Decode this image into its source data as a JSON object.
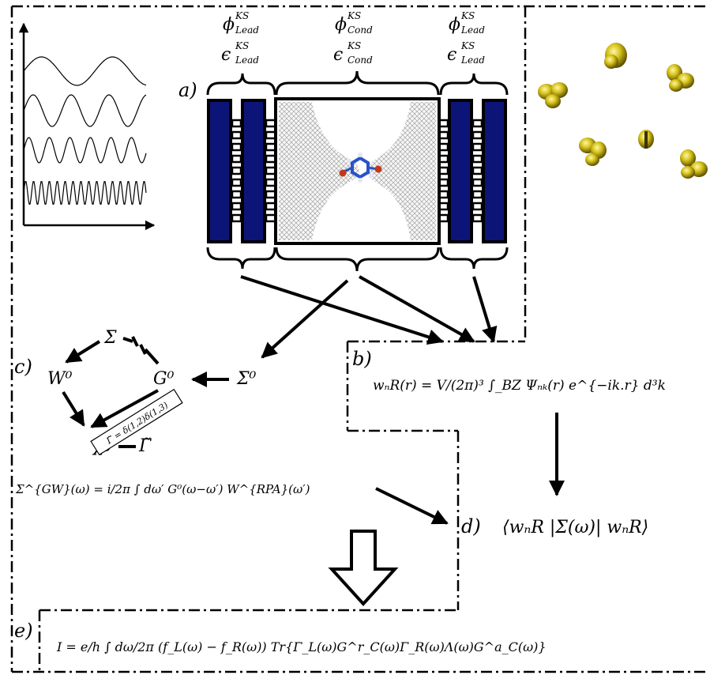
{
  "panels": {
    "a": "a)",
    "b": "b)",
    "c": "c)",
    "d": "d)",
    "e": "e)"
  },
  "lead_label": {
    "phi": "ϕ",
    "phi_sup": "KS",
    "phi_sub": "Lead",
    "eps": "ϵ",
    "eps_sup": "KS",
    "eps_sub": "Lead"
  },
  "cond_label": {
    "phi": "ϕ",
    "phi_sup": "KS",
    "phi_sub": "Cond",
    "eps": "ϵ",
    "eps_sup": "KS",
    "eps_sub": "Cond"
  },
  "cycle": {
    "sigma": "Σ",
    "w0": "W⁰",
    "g0": "G⁰",
    "chi0": "χ̃₀",
    "gamma": "Γ̃",
    "sigma0": "Σ⁰",
    "vertex": "Γ̃ = δ(1,2)δ(1,3)"
  },
  "equations": {
    "wannier": "wₙR(r) = V/(2π)³ ∫_BZ Ψₙₖ(r) e^{−ik.r} d³k",
    "self_energy": "Σ^{GW}(ω) = i/2π ∫ dω′ G⁰(ω−ω′) W^{RPA}(ω′)",
    "matrix_element": "⟨wₙR |Σ(ω)| wₙR⟩",
    "current": "I = e/h ∫ dω/2π (f_L(ω) − f_R(ω)) Tr{Γ_L(ω)G^r_C(ω)Γ_R(ω)Λ(ω)G^a_C(ω)}"
  },
  "colors": {
    "lead_blue": "#0d1478",
    "orbital_yellow": "#d6c21a",
    "graphene_gray": "#888888",
    "molecule_blue": "#2a52c8",
    "molecule_red": "#c0391b"
  },
  "icons": {
    "big_arrow": "hollow-down-arrow",
    "orbitals": "wannier-orbital-blobs",
    "waves": "sine-waves-plot"
  }
}
